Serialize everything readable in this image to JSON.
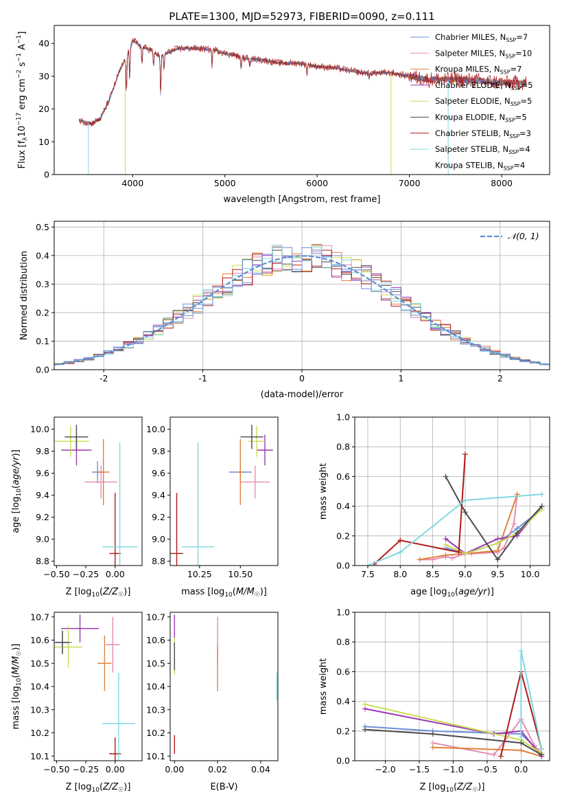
{
  "figure": {
    "title": "PLATE=1300, MJD=52973, FIBERID=0090, z=0.111"
  },
  "colors": {
    "series": [
      "#6a8fd8",
      "#e48cb4",
      "#e0813a",
      "#9a36b0",
      "#ccdb52",
      "#4a4a4a",
      "#b01818",
      "#80d8e0"
    ],
    "normal": "#5a8fd6",
    "grid": "#b0b0b0"
  },
  "series_labels": [
    {
      "pre": "Chabrier MILES, N",
      "sub": "SSP",
      "post": "=7"
    },
    {
      "pre": "Salpeter MILES, N",
      "sub": "SSP",
      "post": "=10"
    },
    {
      "pre": "Kroupa MILES, N",
      "sub": "SSP",
      "post": "=7"
    },
    {
      "pre": "Chabrier ELODIE, N",
      "sub": "SSP",
      "post": "=5"
    },
    {
      "pre": "Salpeter ELODIE, N",
      "sub": "SSP",
      "post": "=5"
    },
    {
      "pre": "Kroupa ELODIE, N",
      "sub": "SSP",
      "post": "=5"
    },
    {
      "pre": "Chabrier STELIB, N",
      "sub": "SSP",
      "post": "=3"
    },
    {
      "pre": "Salpeter STELIB, N",
      "sub": "SSP",
      "post": "=4"
    },
    {
      "pre": "Kroupa STELIB, N",
      "sub": "SSP",
      "post": "=4"
    }
  ],
  "normal_label": "𝒩(0, 1)",
  "chart_data": [
    {
      "id": "spectrum",
      "type": "line",
      "xlabel": "wavelength [Angstrom, rest frame]",
      "ylabel": "Flux [f_λ 10^-17 erg cm^-2 s^-1 A^-1]",
      "xlim": [
        3150,
        8520
      ],
      "ylim": [
        0,
        45.5
      ],
      "xticks": [
        4000,
        5000,
        6000,
        7000,
        8000
      ],
      "yticks": [
        0,
        10,
        20,
        30,
        40
      ],
      "continuum": [
        [
          3420,
          16.5
        ],
        [
          3550,
          15.5
        ],
        [
          3650,
          17
        ],
        [
          3750,
          23
        ],
        [
          3850,
          31
        ],
        [
          3950,
          37
        ],
        [
          4000,
          41
        ],
        [
          4100,
          39
        ],
        [
          4200,
          38
        ],
        [
          4300,
          36
        ],
        [
          4400,
          37.5
        ],
        [
          4500,
          38.5
        ],
        [
          4700,
          38.5
        ],
        [
          4900,
          38
        ],
        [
          5000,
          37
        ],
        [
          5100,
          36.5
        ],
        [
          5200,
          35.5
        ],
        [
          5400,
          35
        ],
        [
          5600,
          34
        ],
        [
          5800,
          34
        ],
        [
          6000,
          33
        ],
        [
          6200,
          32.5
        ],
        [
          6500,
          31
        ],
        [
          6800,
          31
        ],
        [
          7000,
          30
        ],
        [
          7200,
          29
        ],
        [
          7500,
          29
        ],
        [
          7800,
          28.5
        ],
        [
          8000,
          28
        ],
        [
          8270,
          28
        ]
      ],
      "absorptions": [
        [
          3933,
          12
        ],
        [
          3968,
          10
        ],
        [
          4101,
          6
        ],
        [
          4227,
          5
        ],
        [
          4304,
          13
        ],
        [
          4340,
          5
        ],
        [
          4861,
          5
        ],
        [
          5175,
          4
        ],
        [
          5270,
          2
        ],
        [
          5890,
          3
        ],
        [
          6563,
          2
        ]
      ],
      "drops": [
        3520,
        3920,
        6800,
        7420
      ],
      "legend_position": "upper right"
    },
    {
      "id": "residuals",
      "type": "histogram",
      "xlabel": "(data-model)/error",
      "ylabel": "Normed distribution",
      "xlim": [
        -2.5,
        2.5
      ],
      "ylim": [
        0,
        0.52
      ],
      "xticks": [
        -2,
        -1,
        0,
        1,
        2
      ],
      "yticks": [
        0,
        0.1,
        0.2,
        0.3,
        0.4,
        0.5
      ],
      "bin_width": 0.1,
      "grid": true,
      "legend_position": "upper right",
      "normal_curve": {
        "mean": 0,
        "sigma": 1
      }
    },
    {
      "id": "z_age",
      "type": "errorbar",
      "xlabel": "Z [log10(Z/Z☉)]",
      "ylabel": "age  [log10(age/yr)]",
      "xlim": [
        -0.52,
        0.23
      ],
      "ylim": [
        8.76,
        10.11
      ],
      "xticks": [
        -0.5,
        -0.25,
        0.0
      ],
      "xticklabels": [
        "−0.50",
        "−0.25",
        "0.00"
      ],
      "yticks": [
        8.8,
        9.0,
        9.2,
        9.4,
        9.6,
        9.8,
        10.0
      ],
      "points": [
        {
          "s": 0,
          "x": -0.15,
          "y": 9.61,
          "xerr": 0.05,
          "yerr": 0.1
        },
        {
          "s": 1,
          "x": -0.12,
          "y": 9.52,
          "xerr": 0.14,
          "yerr": 0.15
        },
        {
          "s": 2,
          "x": -0.1,
          "y": 9.61,
          "xerr": 0.05,
          "yerr": 0.3
        },
        {
          "s": 3,
          "x": -0.33,
          "y": 9.81,
          "xerr": 0.13,
          "yerr": 0.14
        },
        {
          "s": 4,
          "x": -0.38,
          "y": 9.89,
          "xerr": 0.16,
          "yerr": 0.14
        },
        {
          "s": 5,
          "x": -0.33,
          "y": 9.93,
          "xerr": 0.1,
          "yerr": 0.11
        },
        {
          "s": 6,
          "x": 0.0,
          "y": 8.87,
          "xerr": 0.05,
          "yerr": 0.55
        },
        {
          "s": 7,
          "x": 0.04,
          "y": 8.93,
          "xerr": 0.15,
          "yerr": 0.95
        },
        {
          "s": 8,
          "x": 0.02,
          "y": 9.88,
          "xerr": 0.17,
          "yerr": 0.0
        }
      ]
    },
    {
      "id": "mass_age",
      "type": "errorbar",
      "xlabel": "mass [log10(M/M☉)]",
      "ylabel": "",
      "xlim": [
        10.07,
        10.73
      ],
      "ylim": [
        8.76,
        10.11
      ],
      "xticks": [
        10.25,
        10.5
      ],
      "xticklabels": [
        "10.25",
        "10.50"
      ],
      "yticks": [
        8.8,
        9.0,
        9.2,
        9.4,
        9.6,
        9.8,
        10.0
      ],
      "points": [
        {
          "s": 0,
          "x": 10.5,
          "y": 9.61,
          "xerr": 0.07,
          "yerr": 0.1
        },
        {
          "s": 1,
          "x": 10.59,
          "y": 9.52,
          "xerr": 0.09,
          "yerr": 0.15
        },
        {
          "s": 2,
          "x": 10.5,
          "y": 9.61,
          "xerr": 0.02,
          "yerr": 0.3
        },
        {
          "s": 3,
          "x": 10.65,
          "y": 9.81,
          "xerr": 0.05,
          "yerr": 0.14
        },
        {
          "s": 4,
          "x": 10.6,
          "y": 9.89,
          "xerr": 0.05,
          "yerr": 0.14
        },
        {
          "s": 5,
          "x": 10.57,
          "y": 9.93,
          "xerr": 0.07,
          "yerr": 0.11
        },
        {
          "s": 6,
          "x": 10.11,
          "y": 8.87,
          "xerr": 0.04,
          "yerr": 0.55
        },
        {
          "s": 7,
          "x": 10.24,
          "y": 8.93,
          "xerr": 0.1,
          "yerr": 0.95
        },
        {
          "s": 8,
          "x": 10.2,
          "y": 9.88,
          "xerr": 0.13,
          "yerr": 0.0
        }
      ]
    },
    {
      "id": "age_weight",
      "type": "line",
      "xlabel": "age  [log10(age/yr)]",
      "ylabel": "mass weight",
      "xlim": [
        7.3,
        10.3
      ],
      "ylim": [
        0,
        1.0
      ],
      "xticks": [
        7.5,
        8.0,
        8.5,
        9.0,
        9.5,
        10.0
      ],
      "xticklabels": [
        "7.5",
        "8.0",
        "8.5",
        "9.0",
        "9.5",
        "10.0"
      ],
      "yticks": [
        0,
        0.2,
        0.4,
        0.6,
        0.8,
        1.0
      ],
      "yticklabels": [
        "0.0",
        "0.2",
        "0.4",
        "0.6",
        "0.8",
        "1.0"
      ],
      "grid": true,
      "series": [
        {
          "s": 0,
          "x": [
            8.7,
            9.0,
            9.5,
            9.8,
            10.18
          ],
          "y": [
            0.12,
            0.08,
            0.15,
            0.25,
            0.38
          ]
        },
        {
          "s": 1,
          "x": [
            8.3,
            8.5,
            8.7,
            8.8,
            9.0,
            9.1,
            9.5,
            9.6,
            9.75,
            9.8
          ],
          "y": [
            0.04,
            0.04,
            0.06,
            0.05,
            0.08,
            0.08,
            0.09,
            0.12,
            0.28,
            0.48
          ]
        },
        {
          "s": 2,
          "x": [
            8.3,
            8.7,
            9.0,
            9.5,
            9.8
          ],
          "y": [
            0.04,
            0.07,
            0.08,
            0.1,
            0.48
          ]
        },
        {
          "s": 3,
          "x": [
            8.7,
            9.0,
            9.5,
            9.8,
            10.18
          ],
          "y": [
            0.18,
            0.08,
            0.18,
            0.2,
            0.4
          ]
        },
        {
          "s": 4,
          "x": [
            8.7,
            9.0,
            9.5,
            9.8,
            10.18
          ],
          "y": [
            0.14,
            0.08,
            0.15,
            0.22,
            0.38
          ]
        },
        {
          "s": 5,
          "x": [
            8.7,
            9.0,
            9.5,
            9.8,
            10.18
          ],
          "y": [
            0.6,
            0.36,
            0.04,
            0.22,
            0.4
          ]
        },
        {
          "s": 6,
          "x": [
            7.6,
            8.0,
            8.9,
            9.0
          ],
          "y": [
            0.01,
            0.17,
            0.09,
            0.75
          ]
        },
        {
          "s": 7,
          "x": [
            7.5,
            8.0,
            9.0,
            10.18
          ],
          "y": [
            0.0,
            0.09,
            0.44,
            0.48
          ]
        }
      ]
    },
    {
      "id": "z_mass",
      "type": "errorbar",
      "xlabel": "Z [log10(Z/Z☉)]",
      "ylabel": "mass [log10(M/M☉)]",
      "xlim": [
        -0.52,
        0.23
      ],
      "ylim": [
        10.08,
        10.72
      ],
      "xticks": [
        -0.5,
        -0.25,
        0.0
      ],
      "xticklabels": [
        "−0.50",
        "−0.25",
        "0.00"
      ],
      "yticks": [
        10.1,
        10.2,
        10.3,
        10.4,
        10.5,
        10.6,
        10.7
      ],
      "points": [
        {
          "s": 0,
          "x": -0.45,
          "y": 10.59,
          "xerr": 0.08,
          "yerr": 0.05
        },
        {
          "s": 1,
          "x": -0.02,
          "y": 10.58,
          "xerr": 0.06,
          "yerr": 0.12
        },
        {
          "s": 2,
          "x": -0.09,
          "y": 10.5,
          "xerr": 0.06,
          "yerr": 0.12
        },
        {
          "s": 3,
          "x": -0.3,
          "y": 10.65,
          "xerr": 0.16,
          "yerr": 0.06
        },
        {
          "s": 4,
          "x": -0.4,
          "y": 10.57,
          "xerr": 0.12,
          "yerr": 0.09
        },
        {
          "s": 5,
          "x": -0.45,
          "y": 10.59,
          "xerr": 0.06,
          "yerr": 0.05
        },
        {
          "s": 6,
          "x": 0.0,
          "y": 10.11,
          "xerr": 0.05,
          "yerr": 0.07
        },
        {
          "s": 7,
          "x": 0.03,
          "y": 10.24,
          "xerr": 0.14,
          "yerr": 0.22
        },
        {
          "s": 8,
          "x": 0.05,
          "y": 10.33,
          "xerr": 0.14,
          "yerr": 0.0
        }
      ]
    },
    {
      "id": "ebv_mass",
      "type": "errorbar",
      "xlabel": "E(B-V)",
      "ylabel": "",
      "xlim": [
        -0.002,
        0.048
      ],
      "ylim": [
        10.08,
        10.72
      ],
      "xticks": [
        0.0,
        0.02,
        0.04
      ],
      "xticklabels": [
        "0.00",
        "0.02",
        "0.04"
      ],
      "yticks": [
        10.1,
        10.2,
        10.3,
        10.4,
        10.5,
        10.6,
        10.7
      ],
      "points": [
        {
          "s": 1,
          "x": 0.02,
          "y": 10.6,
          "xerr": 0.0,
          "yerr": 0.1
        },
        {
          "s": 2,
          "x": 0.02,
          "y": 10.48,
          "xerr": 0.0,
          "yerr": 0.1
        },
        {
          "s": 3,
          "x": 0.0,
          "y": 10.65,
          "xerr": 0.0,
          "yerr": 0.06
        },
        {
          "s": 4,
          "x": 0.0,
          "y": 10.53,
          "xerr": 0.0,
          "yerr": 0.08
        },
        {
          "s": 5,
          "x": 0.0,
          "y": 10.53,
          "xerr": 0.0,
          "yerr": 0.06
        },
        {
          "s": 6,
          "x": 0.0,
          "y": 10.15,
          "xerr": 0.0,
          "yerr": 0.04
        },
        {
          "s": 7,
          "x": 0.0475,
          "y": 10.4,
          "xerr": 0.0,
          "yerr": 0.06
        },
        {
          "s": 8,
          "x": 0.0475,
          "y": 10.2,
          "xerr": 0.0,
          "yerr": 0.12
        }
      ]
    },
    {
      "id": "z_weight",
      "type": "line",
      "xlabel": "Z [log10(Z/Z☉)]",
      "ylabel": "mass weight",
      "xlim": [
        -2.45,
        0.42
      ],
      "ylim": [
        0,
        1.0
      ],
      "xticks": [
        -2.0,
        -1.5,
        -1.0,
        -0.5,
        0.0
      ],
      "xticklabels": [
        "−2.0",
        "−1.5",
        "−1.0",
        "−0.5",
        "0.0"
      ],
      "yticks": [
        0,
        0.2,
        0.4,
        0.6,
        0.8,
        1.0
      ],
      "yticklabels": [
        "0.0",
        "0.2",
        "0.4",
        "0.6",
        "0.8",
        "1.0"
      ],
      "grid": true,
      "series": [
        {
          "s": 0,
          "x": [
            -2.3,
            -1.3,
            0.0,
            0.3
          ],
          "y": [
            0.23,
            0.2,
            0.18,
            0.05
          ]
        },
        {
          "s": 1,
          "x": [
            -1.3,
            -0.4,
            0.0,
            0.2,
            0.3
          ],
          "y": [
            0.12,
            0.04,
            0.28,
            0.1,
            0.05
          ]
        },
        {
          "s": 2,
          "x": [
            -1.3,
            0.0,
            0.3
          ],
          "y": [
            0.09,
            0.07,
            0.03
          ]
        },
        {
          "s": 3,
          "x": [
            -2.3,
            -0.4,
            0.0,
            0.3
          ],
          "y": [
            0.35,
            0.18,
            0.2,
            0.03
          ]
        },
        {
          "s": 4,
          "x": [
            -2.3,
            0.0,
            0.3
          ],
          "y": [
            0.38,
            0.14,
            0.05
          ]
        },
        {
          "s": 5,
          "x": [
            -2.3,
            -1.3,
            0.0,
            0.3
          ],
          "y": [
            0.21,
            0.18,
            0.12,
            0.04
          ]
        },
        {
          "s": 6,
          "x": [
            -0.3,
            0.0,
            0.3
          ],
          "y": [
            0.03,
            0.6,
            0.08
          ]
        },
        {
          "s": 7,
          "x": [
            0.0,
            0.0,
            0.3
          ],
          "y": [
            0.16,
            0.74,
            0.08
          ]
        },
        {
          "s": 8,
          "x": [
            0.0,
            0.0,
            0.3
          ],
          "y": [
            0.01,
            0.48,
            0.05
          ]
        }
      ]
    }
  ]
}
